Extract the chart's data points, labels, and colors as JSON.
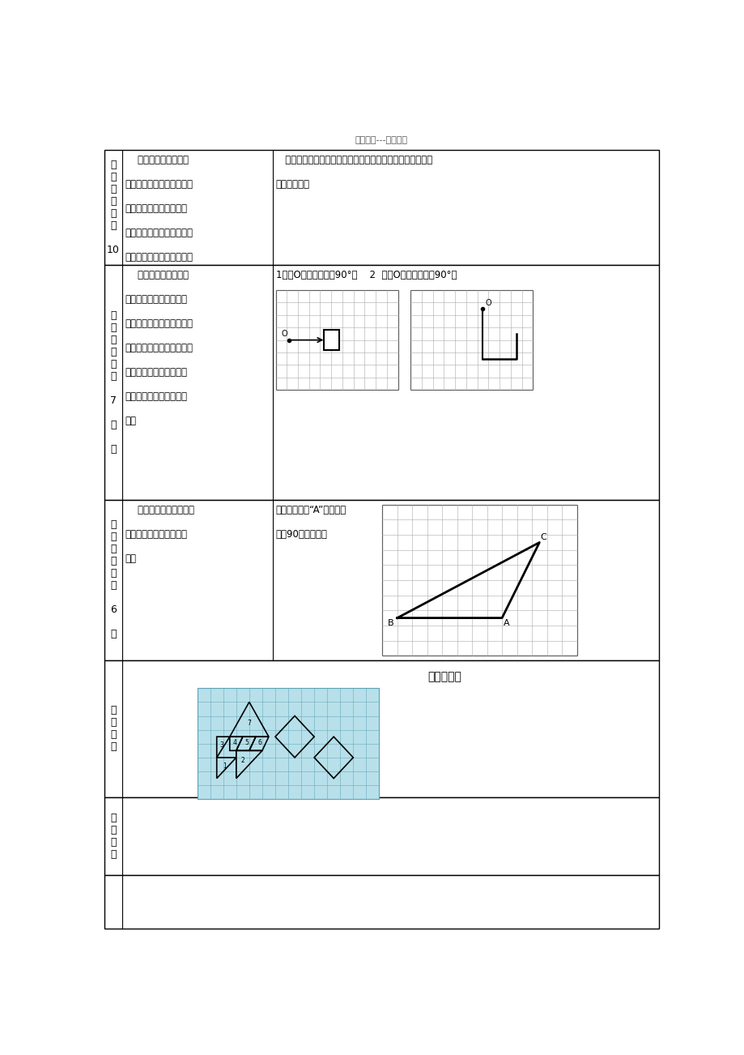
{
  "title_text": "学习备备---教师下载",
  "bg_color": "#ffffff",
  "border_color": "#000000",
  "grid_color": "#aaaaaa",
  "light_blue": "#b8dde8",
  "row1_label": "汇\n报\n展\n示\n（\n约\n\n10",
  "row1_mid": "    课堂上老师尽量多让\n\n学生汇报、展示学习情况，\n\n共同解决学习过程中个人\n\n或小组解决的问题，丰富学\n\n习的方式和途径，丰富学习",
  "row1_right": "   小组展示交流七巧板的每一块是怎样平移或旋转的，然后组\n\n合成了鱼图。",
  "row2_label": "达\n标\n检\n测\n（\n约\n\n7\n\n分\n\n钟",
  "row2_mid": "    一是学生小组内部或\n\n小组间互相检查学生完成\n\n情况，并作出评价。二是教\n\n师对发现的学生中存在的共\n\n性问题予以及时的点拨或\n\n留待辅导时间予以专题讲\n\n解。",
  "row2_right_hdr": "1、绕O点顺时针旋转90°。    2  、绕O点逆时针旋转90°。",
  "row3_label": "拓\n展\n延\n伸\n（\n约\n\n6\n\n分",
  "row3_mid": "    教师检查或小组自查，\n\n发现问题教师课堂立即订\n\n正。",
  "row3_right": "画出三角形绕“A”点顺时针\n\n旋转90后的图形。",
  "row4_label": "板\n书\n设\n计",
  "row4_title": "图形的变换",
  "row5_label": "课\n后\n反\n思"
}
